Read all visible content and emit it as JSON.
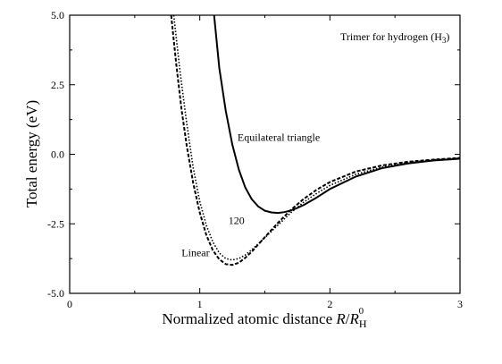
{
  "chart_data": {
    "type": "line",
    "title": "",
    "xlabel": {
      "main": "Normalized atomic distance ",
      "var_r": "R",
      "slash": "/",
      "var_rh": "R",
      "sub": "H",
      "sup": "0"
    },
    "ylabel": "Total energy (eV)",
    "xlim": [
      0,
      3
    ],
    "ylim": [
      -5.0,
      5.0
    ],
    "xticks": [
      {
        "value": 0,
        "label": "0"
      },
      {
        "value": 1,
        "label": "1"
      },
      {
        "value": 2,
        "label": "2"
      },
      {
        "value": 3,
        "label": "3"
      }
    ],
    "yticks": [
      {
        "value": 5.0,
        "label": "5.0"
      },
      {
        "value": 2.5,
        "label": "2.5"
      },
      {
        "value": 0.0,
        "label": "0.0"
      },
      {
        "value": -2.5,
        "label": "-2.5"
      },
      {
        "value": -5.0,
        "label": "-5.0"
      }
    ],
    "annotations": {
      "title_box": {
        "text_main": "Trimer for hydrogen (H",
        "text_sub": "3",
        "text_end": ")",
        "x": 2.08,
        "y": 4.1
      },
      "equilateral": {
        "text": "Equilateral triangle",
        "x": 1.29,
        "y": 0.48
      },
      "angle120": {
        "text": "120",
        "x": 1.22,
        "y": -2.5
      },
      "linear": {
        "text": "Linear",
        "x": 0.86,
        "y": -3.66
      }
    },
    "series": [
      {
        "id": "equilateral",
        "style": "solid",
        "color": "#000000",
        "x": [
          1.11,
          1.15,
          1.2,
          1.25,
          1.3,
          1.35,
          1.4,
          1.45,
          1.5,
          1.55,
          1.6,
          1.65,
          1.7,
          1.75,
          1.8,
          1.9,
          2.0,
          2.2,
          2.4,
          2.6,
          2.8,
          3.0
        ],
        "y": [
          5.0,
          3.1,
          1.55,
          0.35,
          -0.55,
          -1.2,
          -1.62,
          -1.88,
          -2.03,
          -2.09,
          -2.11,
          -2.08,
          -2.02,
          -1.93,
          -1.82,
          -1.55,
          -1.25,
          -0.8,
          -0.5,
          -0.33,
          -0.22,
          -0.16
        ]
      },
      {
        "id": "angle120",
        "style": "dotted",
        "color": "#000000",
        "x": [
          0.8,
          0.85,
          0.9,
          0.95,
          1.0,
          1.05,
          1.1,
          1.15,
          1.2,
          1.25,
          1.3,
          1.35,
          1.4,
          1.5,
          1.6,
          1.7,
          1.8,
          1.9,
          2.0,
          2.2,
          2.4,
          2.6,
          2.8,
          3.0
        ],
        "y": [
          5.0,
          2.9,
          1.1,
          -0.5,
          -1.7,
          -2.55,
          -3.15,
          -3.55,
          -3.75,
          -3.8,
          -3.75,
          -3.62,
          -3.43,
          -3.0,
          -2.55,
          -2.1,
          -1.72,
          -1.4,
          -1.12,
          -0.72,
          -0.46,
          -0.3,
          -0.2,
          -0.14
        ]
      },
      {
        "id": "linear",
        "style": "dashed",
        "color": "#000000",
        "x": [
          0.78,
          0.82,
          0.86,
          0.9,
          0.95,
          1.0,
          1.05,
          1.1,
          1.15,
          1.2,
          1.25,
          1.3,
          1.35,
          1.4,
          1.5,
          1.6,
          1.7,
          1.8,
          1.9,
          2.0,
          2.2,
          2.4,
          2.6,
          2.8,
          3.0
        ],
        "y": [
          5.0,
          3.2,
          1.6,
          0.3,
          -1.05,
          -2.1,
          -2.9,
          -3.45,
          -3.78,
          -3.95,
          -3.98,
          -3.9,
          -3.72,
          -3.5,
          -2.98,
          -2.47,
          -2.0,
          -1.6,
          -1.27,
          -1.0,
          -0.62,
          -0.4,
          -0.27,
          -0.19,
          -0.13
        ]
      }
    ]
  }
}
